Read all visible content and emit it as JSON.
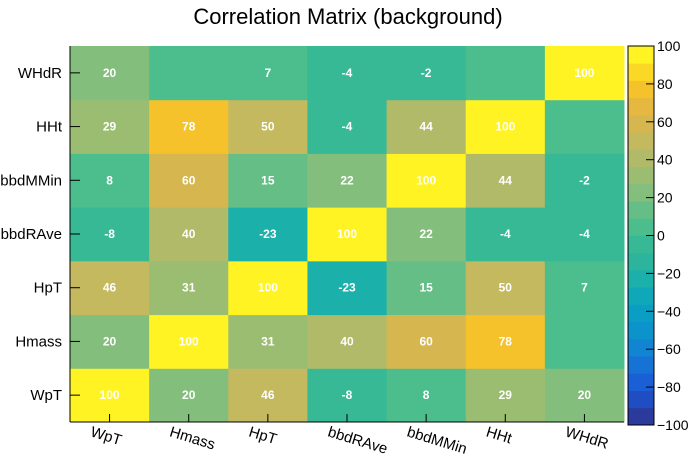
{
  "chart_data": {
    "type": "heatmap",
    "title": "Correlation Matrix (background)",
    "x_labels": [
      "WpT",
      "Hmass",
      "HpT",
      "bbdRAve",
      "bbdMMin",
      "HHt",
      "WHdR"
    ],
    "y_labels": [
      "WpT",
      "Hmass",
      "HpT",
      "bbdRAve",
      "bbdMMin",
      "HHt",
      "WHdR"
    ],
    "values": [
      [
        100,
        20,
        46,
        -8,
        8,
        29,
        20
      ],
      [
        20,
        100,
        31,
        40,
        60,
        78,
        0
      ],
      [
        46,
        31,
        100,
        -23,
        15,
        50,
        7
      ],
      [
        -8,
        40,
        -23,
        100,
        22,
        -4,
        -4
      ],
      [
        8,
        60,
        15,
        22,
        100,
        44,
        -2
      ],
      [
        29,
        78,
        50,
        -4,
        44,
        100,
        0
      ],
      [
        20,
        0,
        7,
        -4,
        -2,
        0,
        100
      ]
    ],
    "z_range": [
      -100,
      100
    ],
    "z_ticks": [
      "100",
      "80",
      "60",
      "40",
      "20",
      "0",
      "−20",
      "−40",
      "−60",
      "−80",
      "−100"
    ],
    "colorbar": [
      "#2c3a9c",
      "#1f4dc2",
      "#1a5fd6",
      "#1772d6",
      "#1184d2",
      "#0d93cb",
      "#0b9ec4",
      "#0fa8b8",
      "#1bb0aa",
      "#2cb59c",
      "#36b994",
      "#4cbd8c",
      "#66be87",
      "#84be7c",
      "#9bbd72",
      "#b0ba68",
      "#c4b95f",
      "#d6b74f",
      "#e7b83f",
      "#f5c22b",
      "#fbd826",
      "#fff323"
    ]
  }
}
